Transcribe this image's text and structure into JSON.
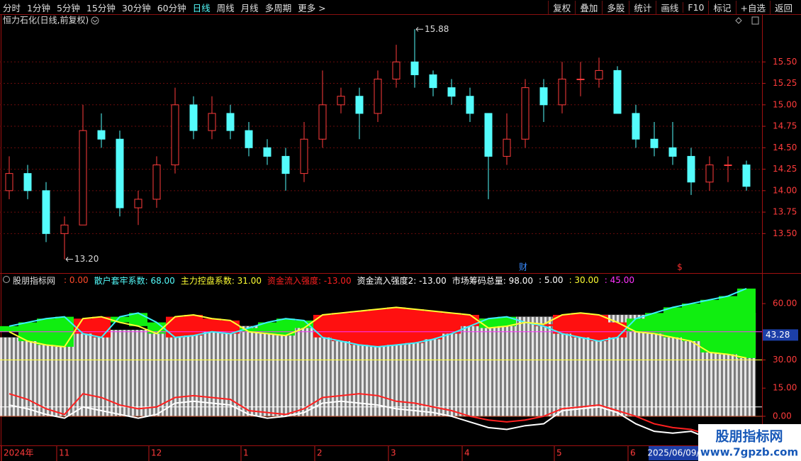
{
  "toolbar": {
    "periods": [
      {
        "label": "分时"
      },
      {
        "label": "1分钟"
      },
      {
        "label": "5分钟"
      },
      {
        "label": "15分钟"
      },
      {
        "label": "30分钟"
      },
      {
        "label": "60分钟"
      },
      {
        "label": "日线",
        "active": true
      },
      {
        "label": "周线"
      },
      {
        "label": "月线"
      },
      {
        "label": "多周期"
      },
      {
        "label": "更多 >"
      }
    ],
    "tools": [
      "复权",
      "叠加",
      "多股",
      "统计",
      "画线",
      "F10",
      "标记",
      "+自选",
      "返回"
    ]
  },
  "chart_data": [
    {
      "type": "candlestick",
      "title": "恒力石化(日线,前复权)",
      "categories": [
        "2024年",
        null,
        null,
        "11",
        null,
        null,
        null,
        null,
        "12",
        null,
        null,
        null,
        null,
        "1",
        null,
        null,
        null,
        "2",
        null,
        null,
        null,
        "3",
        null,
        null,
        null,
        "4",
        null,
        null,
        null,
        null,
        "5",
        null,
        null,
        null,
        "6",
        null,
        null,
        null,
        null,
        null,
        null
      ],
      "open": [
        14.0,
        14.2,
        14.0,
        13.5,
        13.6,
        14.7,
        14.6,
        13.8,
        13.9,
        14.3,
        15.0,
        14.7,
        14.9,
        14.7,
        14.5,
        14.4,
        14.2,
        14.6,
        15.0,
        15.1,
        14.9,
        15.3,
        15.5,
        15.35,
        15.2,
        15.1,
        14.9,
        14.4,
        14.6,
        15.2,
        15.0,
        15.3,
        15.3,
        15.4,
        14.9,
        14.6,
        14.5,
        14.4,
        14.1,
        14.3,
        14.3
      ],
      "high": [
        14.4,
        14.3,
        14.1,
        13.7,
        15.0,
        14.9,
        14.7,
        14.0,
        14.4,
        15.2,
        15.1,
        15.1,
        15.0,
        14.8,
        14.6,
        14.5,
        14.8,
        15.4,
        15.2,
        15.2,
        15.4,
        15.7,
        15.88,
        15.4,
        15.3,
        15.2,
        14.9,
        14.9,
        15.3,
        15.3,
        15.5,
        15.5,
        15.55,
        15.45,
        15.0,
        14.8,
        14.8,
        14.5,
        14.4,
        14.4,
        14.35
      ],
      "low": [
        13.9,
        13.9,
        13.4,
        13.2,
        13.6,
        14.5,
        13.7,
        13.6,
        13.8,
        14.2,
        14.6,
        14.6,
        14.6,
        14.4,
        14.3,
        14.0,
        14.1,
        14.5,
        14.9,
        14.6,
        14.8,
        15.2,
        15.2,
        15.1,
        15.0,
        14.8,
        13.9,
        14.3,
        14.5,
        14.8,
        14.9,
        15.1,
        15.2,
        14.9,
        14.5,
        14.4,
        14.3,
        13.95,
        14.0,
        14.1,
        14.0
      ],
      "close": [
        14.2,
        14.0,
        13.5,
        13.6,
        14.7,
        14.6,
        13.8,
        13.9,
        14.3,
        15.0,
        14.7,
        14.9,
        14.7,
        14.5,
        14.4,
        14.2,
        14.6,
        15.0,
        15.1,
        14.9,
        15.3,
        15.5,
        15.35,
        15.2,
        15.1,
        14.9,
        14.4,
        14.6,
        15.2,
        15.0,
        15.3,
        15.3,
        15.4,
        14.9,
        14.6,
        14.5,
        14.4,
        14.1,
        14.3,
        14.3,
        14.05
      ],
      "up_color": "#ff3b3b",
      "down_color": "#54fcfc",
      "high_label": "15.88",
      "low_label": "13.20",
      "markers": [
        {
          "text": "财"
        },
        {
          "text": "$"
        }
      ],
      "ylim": [
        13.04,
        15.99
      ],
      "yticks": [
        {
          "value": 13.5,
          "label": "13.50"
        },
        {
          "value": 13.75,
          "label": "13.75"
        },
        {
          "value": 14.0,
          "label": "14.00"
        },
        {
          "value": 14.25,
          "label": "14.25"
        },
        {
          "value": 14.5,
          "label": "14.50"
        },
        {
          "value": 14.75,
          "label": "14.75"
        },
        {
          "value": 15.0,
          "label": "15.00"
        },
        {
          "value": 15.25,
          "label": "15.25"
        },
        {
          "value": 15.5,
          "label": "15.50"
        }
      ],
      "grid": true,
      "cursor_date": "2025/06/09/"
    },
    {
      "type": "line",
      "title": "股朋指标网",
      "legend": [
        {
          "text": ": 0.00",
          "color": "#ff4a2a"
        },
        {
          "text": "散户套牢系数: 68.00",
          "color": "#54fcfc"
        },
        {
          "text": "主力控盘系数: 31.00",
          "color": "#ffff33"
        },
        {
          "text": "资金流入强度: -13.00",
          "color": "#ff2020"
        },
        {
          "text": "资金流入强度2: -13.00",
          "color": "#ffffff"
        },
        {
          "text": "市场筹码总量: 98.00",
          "color": "#ffffff"
        },
        {
          "text": ": 5.00",
          "color": "#ffffff"
        },
        {
          "text": ": 30.00",
          "color": "#ffff33"
        },
        {
          "text": ": 45.00",
          "color": "#ff33ff"
        }
      ],
      "bars": {
        "color": "#b8b8b8",
        "values": [
          42,
          43,
          44,
          44,
          45,
          45,
          46,
          46,
          46,
          47,
          47,
          47,
          48,
          48,
          48,
          48,
          49,
          49,
          50,
          50,
          51,
          51,
          51,
          52,
          52,
          52,
          52,
          52,
          53,
          53,
          53,
          53,
          54,
          54,
          54,
          54,
          55,
          55,
          55,
          55,
          55
        ]
      },
      "fill_colors": [
        "#ff1010",
        "#10ee10"
      ],
      "series": [
        {
          "color": "#3cf0ff",
          "values": [
            48,
            50,
            52,
            53,
            44,
            42,
            53,
            55,
            50,
            42,
            43,
            45,
            44,
            47,
            50,
            52,
            51,
            42,
            40,
            38,
            37,
            38,
            39,
            41,
            44,
            48,
            52,
            53,
            50,
            48,
            44,
            42,
            40,
            42,
            52,
            55,
            58,
            60,
            62,
            64,
            68
          ]
        },
        {
          "color": "#ffff33",
          "values": [
            45,
            40,
            38,
            37,
            52,
            53,
            50,
            48,
            44,
            53,
            54,
            52,
            51,
            45,
            44,
            43,
            47,
            54,
            55,
            56,
            57,
            58,
            57,
            56,
            55,
            54,
            47,
            48,
            50,
            49,
            54,
            55,
            54,
            50,
            45,
            44,
            42,
            40,
            34,
            33,
            31
          ]
        },
        {
          "color": "#ff2020",
          "values": [
            12,
            9,
            4,
            1,
            12,
            10,
            6,
            4,
            5,
            10,
            11,
            10,
            9,
            3,
            2,
            1,
            4,
            10,
            11,
            12,
            11,
            8,
            7,
            5,
            3,
            0,
            -2,
            -3,
            -2,
            0,
            4,
            5,
            6,
            3,
            0,
            -4,
            -6,
            -7,
            -10,
            -12,
            -13
          ]
        },
        {
          "color": "#ffffff",
          "values": [
            6,
            4,
            1,
            -1,
            5,
            3,
            1,
            -1,
            1,
            7,
            8,
            7,
            6,
            1,
            -1,
            0,
            2,
            7,
            8,
            7,
            6,
            4,
            3,
            2,
            0,
            -3,
            -6,
            -7,
            -5,
            -4,
            3,
            4,
            5,
            2,
            -4,
            -8,
            -9,
            -8,
            -12,
            -13,
            -13
          ]
        }
      ],
      "hlines": [
        {
          "value": 0,
          "color": "#c8502a"
        },
        {
          "value": 5,
          "color": "#ffffff"
        },
        {
          "value": 30,
          "color": "#ffff33"
        },
        {
          "value": 45,
          "color": "#ff33ff"
        }
      ],
      "ylim": [
        -15.5,
        70.6
      ],
      "yticks": [
        {
          "value": 0,
          "label": "0.00"
        },
        {
          "value": 15,
          "label": "15.00"
        },
        {
          "value": 30,
          "label": "30.00"
        },
        {
          "value": 60,
          "label": "60.00"
        }
      ],
      "cursor_value": 43.28
    }
  ],
  "watermark": {
    "title": "股朋指标网",
    "url": "www.7gpzb.com"
  }
}
